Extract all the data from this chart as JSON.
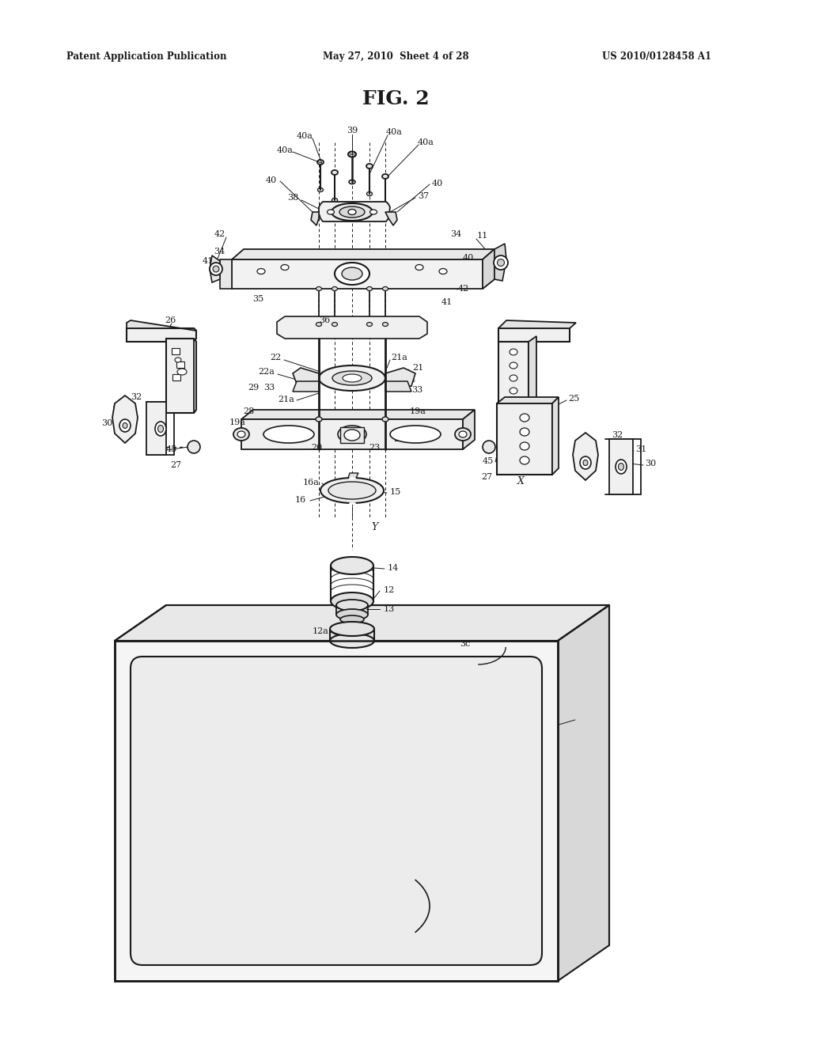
{
  "title": "FIG. 2",
  "header_left": "Patent Application Publication",
  "header_center": "May 27, 2010  Sheet 4 of 28",
  "header_right": "US 2010/0128458 A1",
  "bg_color": "#ffffff",
  "line_color": "#1a1a1a",
  "text_color": "#1a1a1a",
  "fig_width": 10.24,
  "fig_height": 13.2,
  "dpi": 100
}
